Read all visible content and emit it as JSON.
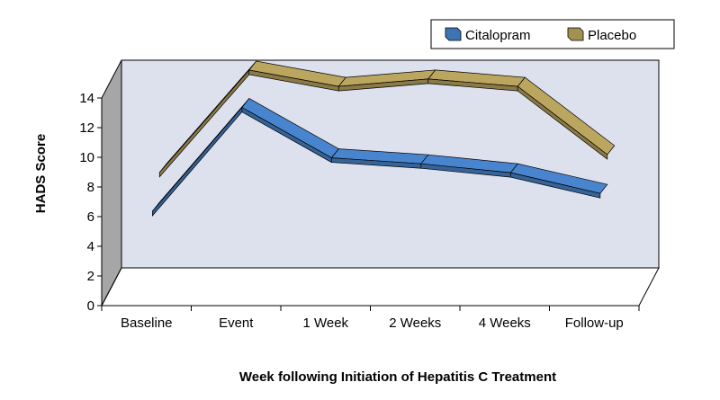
{
  "chart_data": {
    "type": "line",
    "style": "3d-ribbon",
    "categories": [
      "Baseline",
      "Event",
      "1 Week",
      "2 Weeks",
      "4 Weeks",
      "Follow-up"
    ],
    "series": [
      {
        "name": "Citalopram",
        "values": [
          5.6,
          12.6,
          9.2,
          8.8,
          8.2,
          6.8
        ],
        "color": "#3f74b3"
      },
      {
        "name": "Placebo",
        "values": [
          7.3,
          14.2,
          13.1,
          13.6,
          13.1,
          8.5
        ],
        "color": "#a39053"
      }
    ],
    "title": "",
    "xlabel": "Week following Initiation of Hepatitis C Treatment",
    "ylabel": "HADS Score",
    "ylim": [
      0,
      14
    ],
    "yticks": [
      0,
      2,
      4,
      6,
      8,
      10,
      12,
      14
    ],
    "grid": false,
    "legend_position": "top-right",
    "colors": {
      "wall": "#dde1ee",
      "side_wall": "#a6a6a6",
      "axis": "#000000"
    }
  }
}
